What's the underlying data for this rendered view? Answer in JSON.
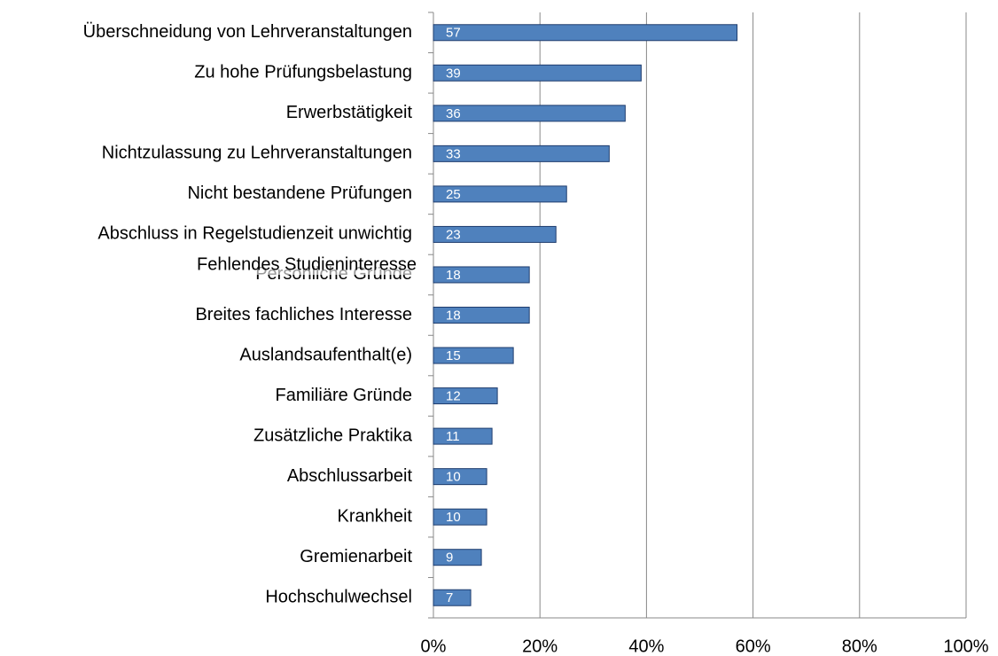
{
  "chart_data": {
    "type": "hbar",
    "categories": [
      "Überschneidung von Lehrveranstaltungen",
      "Zu hohe Prüfungsbelastung",
      "Erwerbstätigkeit",
      "Nichtzulassung zu Lehrveranstaltungen",
      "Nicht bestandene Prüfungen",
      "Abschluss in Regelstudienzeit unwichtig",
      "Persönliche Gründe",
      "Breites fachliches Interesse",
      "Auslandsaufenthalt(e)",
      "Familiäre Gründe",
      "Zusätzliche Praktika",
      "Abschlussarbeit",
      "Krankheit",
      "Gremienarbeit",
      "Hochschulwechsel"
    ],
    "values": [
      57,
      39,
      36,
      33,
      25,
      23,
      18,
      18,
      15,
      12,
      11,
      10,
      10,
      9,
      7
    ],
    "annotations": [
      "Fehlendes Studieninteresse"
    ],
    "color": "#4f81bd",
    "xlim": [
      0,
      100
    ],
    "xticks": [
      {
        "value": 0,
        "label": "0%"
      },
      {
        "value": 20,
        "label": "20%"
      },
      {
        "value": 40,
        "label": "40%"
      },
      {
        "value": 60,
        "label": "60%"
      },
      {
        "value": 80,
        "label": "80%"
      },
      {
        "value": 100,
        "label": "100%"
      }
    ],
    "grid": true
  }
}
